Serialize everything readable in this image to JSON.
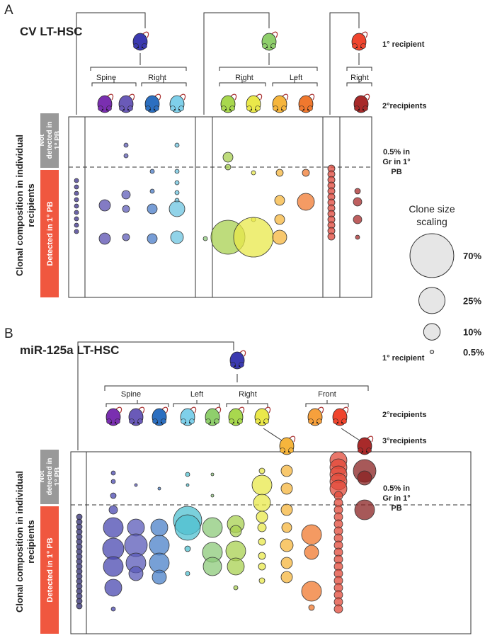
{
  "panel_a": {
    "letter": "A",
    "title": "CV LT-HSC",
    "primary_label": "1° recipient",
    "branch_labels": [
      "Spine",
      "Right",
      "Right",
      "Left",
      "Right"
    ],
    "secondary_label": "2°recipients",
    "not_detected": [
      "Not",
      "detected in",
      "1° PB"
    ],
    "detected": "Detected in 1° PB",
    "y_label": [
      "Clonal composition in individual",
      "recipients"
    ],
    "threshold": [
      "0.5% in",
      "Gr in 1°",
      "PB"
    ]
  },
  "scale": {
    "title": [
      "Clone size",
      "scaling"
    ],
    "items": [
      {
        "value": 70,
        "label": "70%"
      },
      {
        "value": 25,
        "label": "25%"
      },
      {
        "value": 10,
        "label": "10%"
      },
      {
        "value": 0.5,
        "label": "0.5%"
      }
    ]
  },
  "panel_b": {
    "letter": "B",
    "title": "miR-125a LT-HSC",
    "primary_label": "1° recipient",
    "branch_labels": [
      "Spine",
      "Left",
      "Right",
      "Front"
    ],
    "secondary_label": "2°recipients",
    "tertiary_label": "3°recipients",
    "not_detected": [
      "Not",
      "detected in",
      "1° PB"
    ],
    "detected": "Detected in 1° PB",
    "y_label": [
      "Clonal composition in individual",
      "recipients"
    ],
    "threshold": [
      "0.5% in",
      "Gr in 1°",
      "PB"
    ]
  }
}
